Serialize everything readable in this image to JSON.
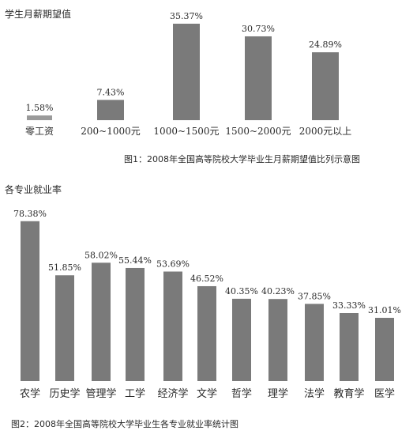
{
  "colors": {
    "bar": "#7a7a7a",
    "bar_light": "#9a9a9a",
    "text": "#2a2a2a"
  },
  "chart_data": [
    {
      "type": "bar",
      "ylabel": "学生月薪期望值",
      "caption": "图1：2008年全国高等院校大学毕业生月薪期望值比列示意图",
      "categories": [
        "零工资",
        "200~1000元",
        "1000~1500元",
        "1500~2000元",
        "2000元以上"
      ],
      "values": [
        1.58,
        7.43,
        35.37,
        30.73,
        24.89
      ],
      "value_labels": [
        "1.58%",
        "7.43%",
        "35.37%",
        "30.73%",
        "24.89%"
      ],
      "grid": false
    },
    {
      "type": "bar",
      "ylabel": "各专业就业率",
      "caption": "图2：2008年全国高等院校大学毕业生各专业就业率统计图",
      "categories": [
        "农学",
        "历史学",
        "管理学",
        "工学",
        "经济学",
        "文学",
        "哲学",
        "理学",
        "法学",
        "教育学",
        "医学"
      ],
      "values": [
        78.38,
        51.85,
        58.02,
        55.44,
        53.69,
        46.52,
        40.35,
        40.23,
        37.85,
        33.33,
        31.01
      ],
      "value_labels": [
        "78.38%",
        "51.85%",
        "58.02%",
        "55.44%",
        "53.69%",
        "46.52%",
        "40.35%",
        "40.23%",
        "37.85%",
        "33.33%",
        "31.01%"
      ],
      "grid": false
    }
  ]
}
